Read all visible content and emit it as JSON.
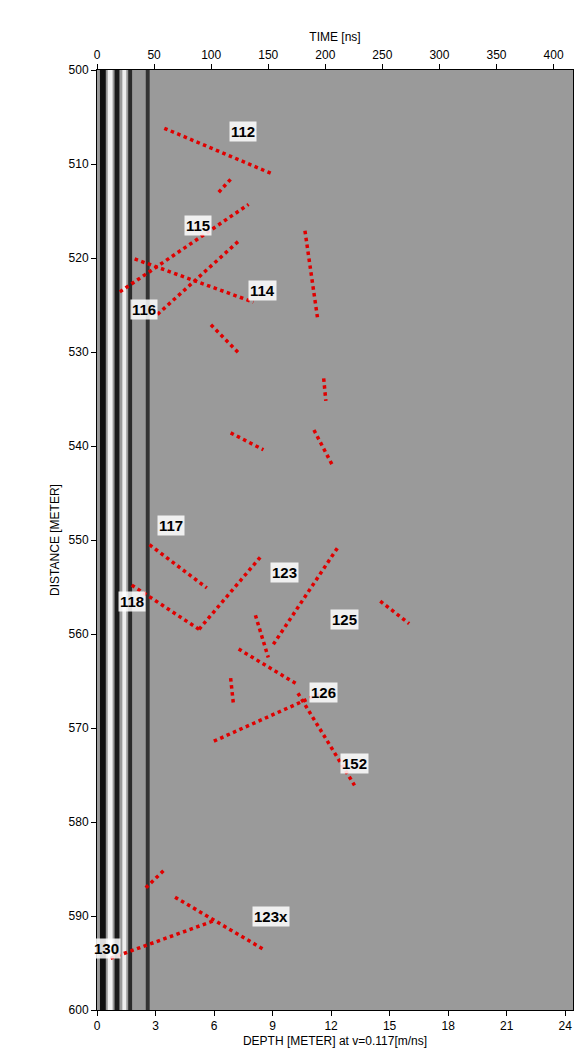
{
  "chart_data": {
    "type": "scatter",
    "x_label": "DEPTH [METER] at v=0.117[m/ns]",
    "x2_label": "TIME [ns]",
    "y_label": "DISTANCE [METER]",
    "xlim": [
      0,
      24.4
    ],
    "xticks": [
      0,
      3,
      6,
      9,
      12,
      15,
      18,
      21,
      24
    ],
    "x2lim": [
      0,
      417
    ],
    "x2ticks": [
      0,
      50,
      100,
      150,
      200,
      250,
      300,
      350,
      400
    ],
    "ylim": [
      600,
      500
    ],
    "yticks": [
      500,
      510,
      520,
      530,
      540,
      550,
      560,
      570,
      580,
      590,
      600
    ],
    "grid": false,
    "color": "#e00000",
    "line_style": "dot",
    "bands": [
      {
        "x0": 0.15,
        "x1": 0.45,
        "color": "#111111"
      },
      {
        "x0": 0.55,
        "x1": 0.8,
        "color": "#f2f2f2"
      },
      {
        "x0": 0.9,
        "x1": 1.15,
        "color": "#1a1a1a"
      },
      {
        "x0": 1.3,
        "x1": 1.5,
        "color": "#eeeeee"
      },
      {
        "x0": 1.6,
        "x1": 1.8,
        "color": "#2a2a2a"
      },
      {
        "x0": 2.5,
        "x1": 2.7,
        "color": "#333333"
      }
    ],
    "segments": [
      {
        "x": [
          3.45,
          9.04
        ],
        "y": [
          506.2,
          511.1
        ]
      },
      {
        "x": [
          6.24,
          6.95
        ],
        "y": [
          513.0,
          511.4
        ]
      },
      {
        "x": [
          1.17,
          7.77
        ],
        "y": [
          523.6,
          514.3
        ]
      },
      {
        "x": [
          3.1,
          7.26
        ],
        "y": [
          526.0,
          518.2
        ]
      },
      {
        "x": [
          1.93,
          8.02
        ],
        "y": [
          520.1,
          524.7
        ]
      },
      {
        "x": [
          5.84,
          7.26
        ],
        "y": [
          527.1,
          530.1
        ]
      },
      {
        "x": [
          10.66,
          11.32
        ],
        "y": [
          517.1,
          526.6
        ]
      },
      {
        "x": [
          11.62,
          11.73
        ],
        "y": [
          532.8,
          535.2
        ]
      },
      {
        "x": [
          6.85,
          8.53
        ],
        "y": [
          538.6,
          540.4
        ]
      },
      {
        "x": [
          11.12,
          12.08
        ],
        "y": [
          538.3,
          542.1
        ]
      },
      {
        "x": [
          2.69,
          5.63
        ],
        "y": [
          550.5,
          555.1
        ]
      },
      {
        "x": [
          1.78,
          5.23
        ],
        "y": [
          554.8,
          559.5
        ]
      },
      {
        "x": [
          5.23,
          8.38
        ],
        "y": [
          559.5,
          551.8
        ]
      },
      {
        "x": [
          8.12,
          8.78
        ],
        "y": [
          558.0,
          562.5
        ]
      },
      {
        "x": [
          9.04,
          12.34
        ],
        "y": [
          561.1,
          550.8
        ]
      },
      {
        "x": [
          14.52,
          16.0
        ],
        "y": [
          556.5,
          558.9
        ]
      },
      {
        "x": [
          6.85,
          7.0
        ],
        "y": [
          564.7,
          567.6
        ]
      },
      {
        "x": [
          7.26,
          10.3
        ],
        "y": [
          561.6,
          565.4
        ]
      },
      {
        "x": [
          5.99,
          11.47
        ],
        "y": [
          571.4,
          566.3
        ]
      },
      {
        "x": [
          10.3,
          13.2
        ],
        "y": [
          566.3,
          576.1
        ]
      },
      {
        "x": [
          2.5,
          3.5
        ],
        "y": [
          587.0,
          585.0
        ]
      },
      {
        "x": [
          4.0,
          8.5
        ],
        "y": [
          588.0,
          593.5
        ]
      },
      {
        "x": [
          0.7,
          6.0
        ],
        "y": [
          594.5,
          590.5
        ]
      }
    ],
    "annotations": [
      {
        "text": "112",
        "x": 7.5,
        "y": 506.5
      },
      {
        "text": "115",
        "x": 5.2,
        "y": 516.5
      },
      {
        "text": "116",
        "x": 2.4,
        "y": 525.5
      },
      {
        "text": "114",
        "x": 8.5,
        "y": 523.5
      },
      {
        "text": "117",
        "x": 3.8,
        "y": 548.5
      },
      {
        "text": "118",
        "x": 1.8,
        "y": 556.5
      },
      {
        "text": "123",
        "x": 9.6,
        "y": 553.5
      },
      {
        "text": "125",
        "x": 12.7,
        "y": 558.5
      },
      {
        "text": "126",
        "x": 11.6,
        "y": 566.2
      },
      {
        "text": "152",
        "x": 13.2,
        "y": 573.8
      },
      {
        "text": "123x",
        "x": 8.9,
        "y": 590.0
      },
      {
        "text": "130",
        "x": 0.5,
        "y": 593.5
      }
    ]
  }
}
